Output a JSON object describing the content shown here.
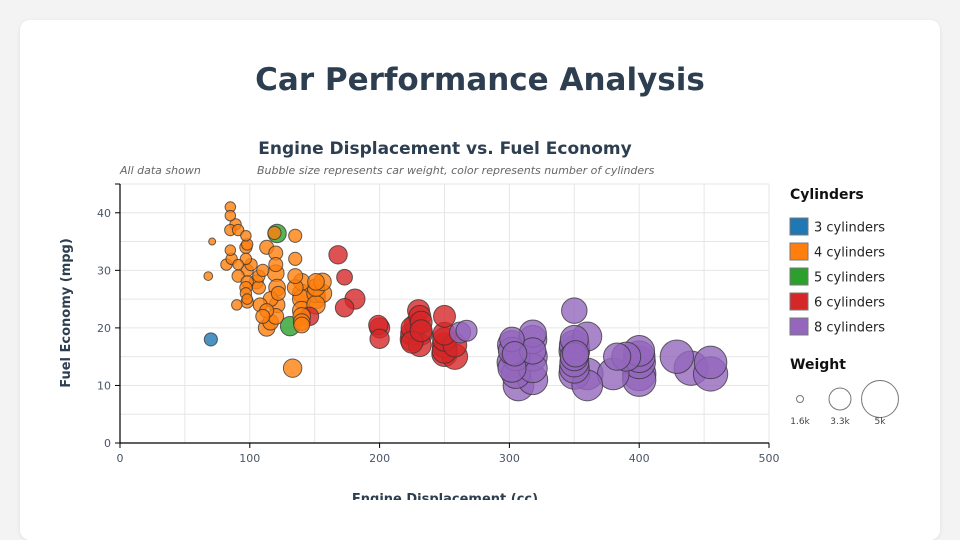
{
  "page_title": "Car Performance Analysis",
  "chart_data": {
    "type": "scatter",
    "title": "Engine Displacement vs. Fuel Economy",
    "subtitle_left": "All data shown",
    "subtitle_right": "Bubble size represents car weight, color represents number of cylinders",
    "xlabel": "Engine Displacement (cc)",
    "ylabel": "Fuel Economy (mpg)",
    "xlim": [
      0,
      500
    ],
    "ylim": [
      0,
      45
    ],
    "xticks": [
      0,
      100,
      200,
      300,
      400,
      500
    ],
    "yticks": [
      0,
      10,
      20,
      30,
      40
    ],
    "grid": true,
    "legend": {
      "title": "Cylinders",
      "placement": "right",
      "entries": [
        {
          "label": "3 cylinders",
          "cylinders": 3,
          "color": "#1f77b4"
        },
        {
          "label": "4 cylinders",
          "cylinders": 4,
          "color": "#ff7f0e"
        },
        {
          "label": "5 cylinders",
          "cylinders": 5,
          "color": "#2ca02c"
        },
        {
          "label": "6 cylinders",
          "cylinders": 6,
          "color": "#d62728"
        },
        {
          "label": "8 cylinders",
          "cylinders": 8,
          "color": "#9467bd"
        }
      ],
      "size_title": "Weight",
      "sizes": [
        {
          "label": "1.6k",
          "weight": 1.6
        },
        {
          "label": "3.3k",
          "weight": 3.3
        },
        {
          "label": "5k",
          "weight": 5.0
        }
      ]
    },
    "point_fields": [
      "displacement",
      "mpg",
      "weight_k",
      "cylinders"
    ],
    "points": [
      [
        85,
        41,
        2.0,
        4
      ],
      [
        85,
        39.5,
        2.0,
        4
      ],
      [
        89,
        38,
        2.1,
        4
      ],
      [
        85,
        37,
        2.1,
        4
      ],
      [
        91,
        37,
        2.1,
        4
      ],
      [
        71,
        35,
        1.6,
        4
      ],
      [
        97,
        36,
        2.0,
        4
      ],
      [
        98,
        34.5,
        2.1,
        4
      ],
      [
        97,
        34,
        2.2,
        4
      ],
      [
        85,
        33.5,
        2.0,
        4
      ],
      [
        113,
        34,
        2.4,
        4
      ],
      [
        120,
        33,
        2.4,
        4
      ],
      [
        97,
        32,
        2.1,
        4
      ],
      [
        135,
        36,
        2.3,
        4
      ],
      [
        135,
        32,
        2.3,
        4
      ],
      [
        82,
        31,
        2.1,
        4
      ],
      [
        86,
        32,
        2.1,
        4
      ],
      [
        98,
        30,
        2.2,
        4
      ],
      [
        107,
        29,
        2.2,
        4
      ],
      [
        110,
        30,
        2.2,
        4
      ],
      [
        68,
        29,
        1.8,
        4
      ],
      [
        91,
        29,
        2.2,
        4
      ],
      [
        105,
        28,
        2.4,
        4
      ],
      [
        120,
        31,
        2.4,
        4
      ],
      [
        120,
        29.5,
        2.7,
        4
      ],
      [
        121,
        27,
        2.7,
        4
      ],
      [
        98,
        28,
        2.2,
        4
      ],
      [
        97,
        26,
        2.1,
        4
      ],
      [
        98,
        25,
        2.0,
        4
      ],
      [
        90,
        24,
        2.0,
        4
      ],
      [
        98,
        24.5,
        2.2,
        4
      ],
      [
        108,
        24,
        2.4,
        4
      ],
      [
        113,
        23,
        2.4,
        4
      ],
      [
        121,
        24,
        2.6,
        4
      ],
      [
        110,
        22,
        2.4,
        4
      ],
      [
        116,
        21,
        2.6,
        4
      ],
      [
        120,
        22,
        2.6,
        4
      ],
      [
        113,
        20,
        2.7,
        4
      ],
      [
        133,
        13,
        2.9,
        4
      ],
      [
        135,
        29,
        2.5,
        4
      ],
      [
        140,
        28,
        2.7,
        4
      ],
      [
        140,
        26,
        2.9,
        4
      ],
      [
        140,
        25,
        2.9,
        4
      ],
      [
        140,
        23,
        2.9,
        4
      ],
      [
        140,
        22,
        2.8,
        4
      ],
      [
        140,
        20.5,
        2.6,
        4
      ],
      [
        140,
        21,
        2.7,
        4
      ],
      [
        151,
        28,
        2.7,
        4
      ],
      [
        151,
        27,
        2.8,
        4
      ],
      [
        151,
        26,
        2.9,
        4
      ],
      [
        151,
        25,
        3.0,
        4
      ],
      [
        156,
        28,
        2.8,
        4
      ],
      [
        156,
        26,
        2.9,
        4
      ],
      [
        151,
        24,
        2.9,
        4
      ],
      [
        135,
        27,
        2.6,
        4
      ],
      [
        122,
        26,
        2.4,
        4
      ],
      [
        116,
        25,
        2.5,
        4
      ],
      [
        97,
        27,
        2.2,
        4
      ],
      [
        91,
        31,
        2.0,
        4
      ],
      [
        101,
        31,
        2.2,
        4
      ],
      [
        107,
        27,
        2.3,
        4
      ],
      [
        119,
        36.5,
        2.3,
        4
      ],
      [
        121,
        36.4,
        2.9,
        5
      ],
      [
        131,
        20.3,
        3.0,
        5
      ],
      [
        70,
        18,
        2.3,
        3
      ],
      [
        168,
        32.7,
        2.9,
        6
      ],
      [
        173,
        28.8,
        2.6,
        6
      ],
      [
        181,
        25,
        3.1,
        6
      ],
      [
        173,
        23.5,
        2.9,
        6
      ],
      [
        146,
        22,
        2.9,
        6
      ],
      [
        199,
        20.5,
        3.0,
        6
      ],
      [
        200,
        20,
        3.1,
        6
      ],
      [
        200,
        18.1,
        3.0,
        6
      ],
      [
        225,
        20,
        3.3,
        6
      ],
      [
        225,
        19,
        3.4,
        6
      ],
      [
        225,
        18,
        3.5,
        6
      ],
      [
        230,
        23,
        3.3,
        6
      ],
      [
        231,
        22,
        3.3,
        6
      ],
      [
        232,
        21,
        3.3,
        6
      ],
      [
        232,
        19,
        3.4,
        6
      ],
      [
        231,
        17,
        3.4,
        6
      ],
      [
        225,
        17.5,
        3.3,
        6
      ],
      [
        250,
        22,
        3.3,
        6
      ],
      [
        250,
        18,
        3.5,
        6
      ],
      [
        250,
        17,
        3.6,
        6
      ],
      [
        250,
        16,
        3.6,
        6
      ],
      [
        250,
        15.5,
        3.7,
        6
      ],
      [
        258,
        15,
        3.7,
        6
      ],
      [
        258,
        17,
        3.5,
        6
      ],
      [
        232,
        19.5,
        3.3,
        6
      ],
      [
        228,
        20.5,
        3.4,
        6
      ],
      [
        250,
        19,
        3.4,
        6
      ],
      [
        262,
        19.2,
        3.2,
        8
      ],
      [
        267,
        19.5,
        3.2,
        8
      ],
      [
        302,
        18,
        3.6,
        8
      ],
      [
        302,
        17,
        4.1,
        8
      ],
      [
        302,
        16,
        3.9,
        8
      ],
      [
        305,
        15,
        4.0,
        8
      ],
      [
        302,
        14,
        4.2,
        8
      ],
      [
        302,
        13,
        4.0,
        8
      ],
      [
        305,
        12,
        4.1,
        8
      ],
      [
        307,
        10,
        4.3,
        8
      ],
      [
        318,
        19,
        3.9,
        8
      ],
      [
        318,
        18,
        4.0,
        8
      ],
      [
        318,
        16,
        3.8,
        8
      ],
      [
        318,
        15,
        4.1,
        8
      ],
      [
        318,
        13,
        4.1,
        8
      ],
      [
        318,
        11,
        4.2,
        8
      ],
      [
        304,
        15.5,
        3.6,
        8
      ],
      [
        350,
        23,
        3.7,
        8
      ],
      [
        350,
        18,
        4.0,
        8
      ],
      [
        350,
        17,
        4.2,
        8
      ],
      [
        350,
        16,
        4.3,
        8
      ],
      [
        350,
        15,
        4.0,
        8
      ],
      [
        350,
        14,
        4.1,
        8
      ],
      [
        350,
        13,
        4.2,
        8
      ],
      [
        350,
        12,
        4.3,
        8
      ],
      [
        351,
        15.5,
        3.8,
        8
      ],
      [
        360,
        18.5,
        4.1,
        8
      ],
      [
        360,
        12,
        4.4,
        8
      ],
      [
        360,
        10,
        4.3,
        8
      ],
      [
        383,
        15,
        3.9,
        8
      ],
      [
        390,
        15,
        4.1,
        8
      ],
      [
        380,
        12,
        4.4,
        8
      ],
      [
        400,
        16,
        4.3,
        8
      ],
      [
        400,
        15,
        4.4,
        8
      ],
      [
        400,
        14,
        4.5,
        8
      ],
      [
        400,
        12,
        4.6,
        8
      ],
      [
        400,
        11,
        4.6,
        8
      ],
      [
        429,
        15,
        4.6,
        8
      ],
      [
        440,
        13,
        4.7,
        8
      ],
      [
        455,
        14,
        4.5,
        8
      ],
      [
        455,
        12,
        4.7,
        8
      ]
    ]
  }
}
